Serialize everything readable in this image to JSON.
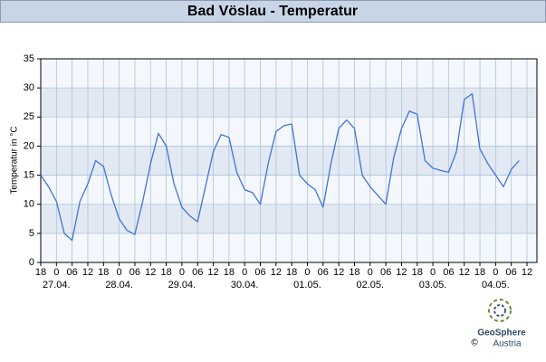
{
  "chart_data": {
    "type": "line",
    "title": "Bad Vöslau - Temperatur",
    "y_label": "Temperatur in °C",
    "x_tick_labels": [
      "18",
      "0",
      "06",
      "12",
      "18",
      "0",
      "06",
      "12",
      "18",
      "0",
      "06",
      "12",
      "18",
      "0",
      "06",
      "12",
      "18",
      "0",
      "06",
      "12",
      "18",
      "0",
      "06",
      "12",
      "18",
      "0",
      "06",
      "12",
      "18",
      "0",
      "06",
      "12"
    ],
    "date_labels": [
      "27.04.",
      "28.04.",
      "29.04.",
      "30.04.",
      "01.05.",
      "02.05.",
      "03.05.",
      "04.05."
    ],
    "ylim": [
      0,
      35
    ],
    "yticks": [
      0,
      5,
      10,
      15,
      20,
      25,
      30,
      35
    ],
    "grid": true,
    "series": [
      {
        "name": "Temperatur",
        "color": "#3f74d9",
        "values": [
          15,
          13,
          10.5,
          5,
          3.8,
          10.5,
          13.5,
          17.5,
          16.5,
          11.5,
          7.5,
          5.5,
          4.8,
          10.5,
          17,
          22.2,
          20,
          13.5,
          9.5,
          8,
          7,
          13,
          19,
          22,
          21.5,
          15.5,
          12.5,
          12,
          10,
          17,
          22.5,
          23.5,
          23.8,
          15,
          13.5,
          12.5,
          9.5,
          17,
          23,
          24.5,
          23,
          15,
          13,
          11.5,
          10,
          18,
          23,
          26,
          25.5,
          17.5,
          16.2,
          15.8,
          15.5,
          19,
          28,
          29,
          19.5,
          17,
          15,
          13,
          16,
          17.5
        ]
      }
    ],
    "logo": {
      "name": "GeoSphere",
      "sub": "Austria",
      "copyright": "©"
    }
  }
}
